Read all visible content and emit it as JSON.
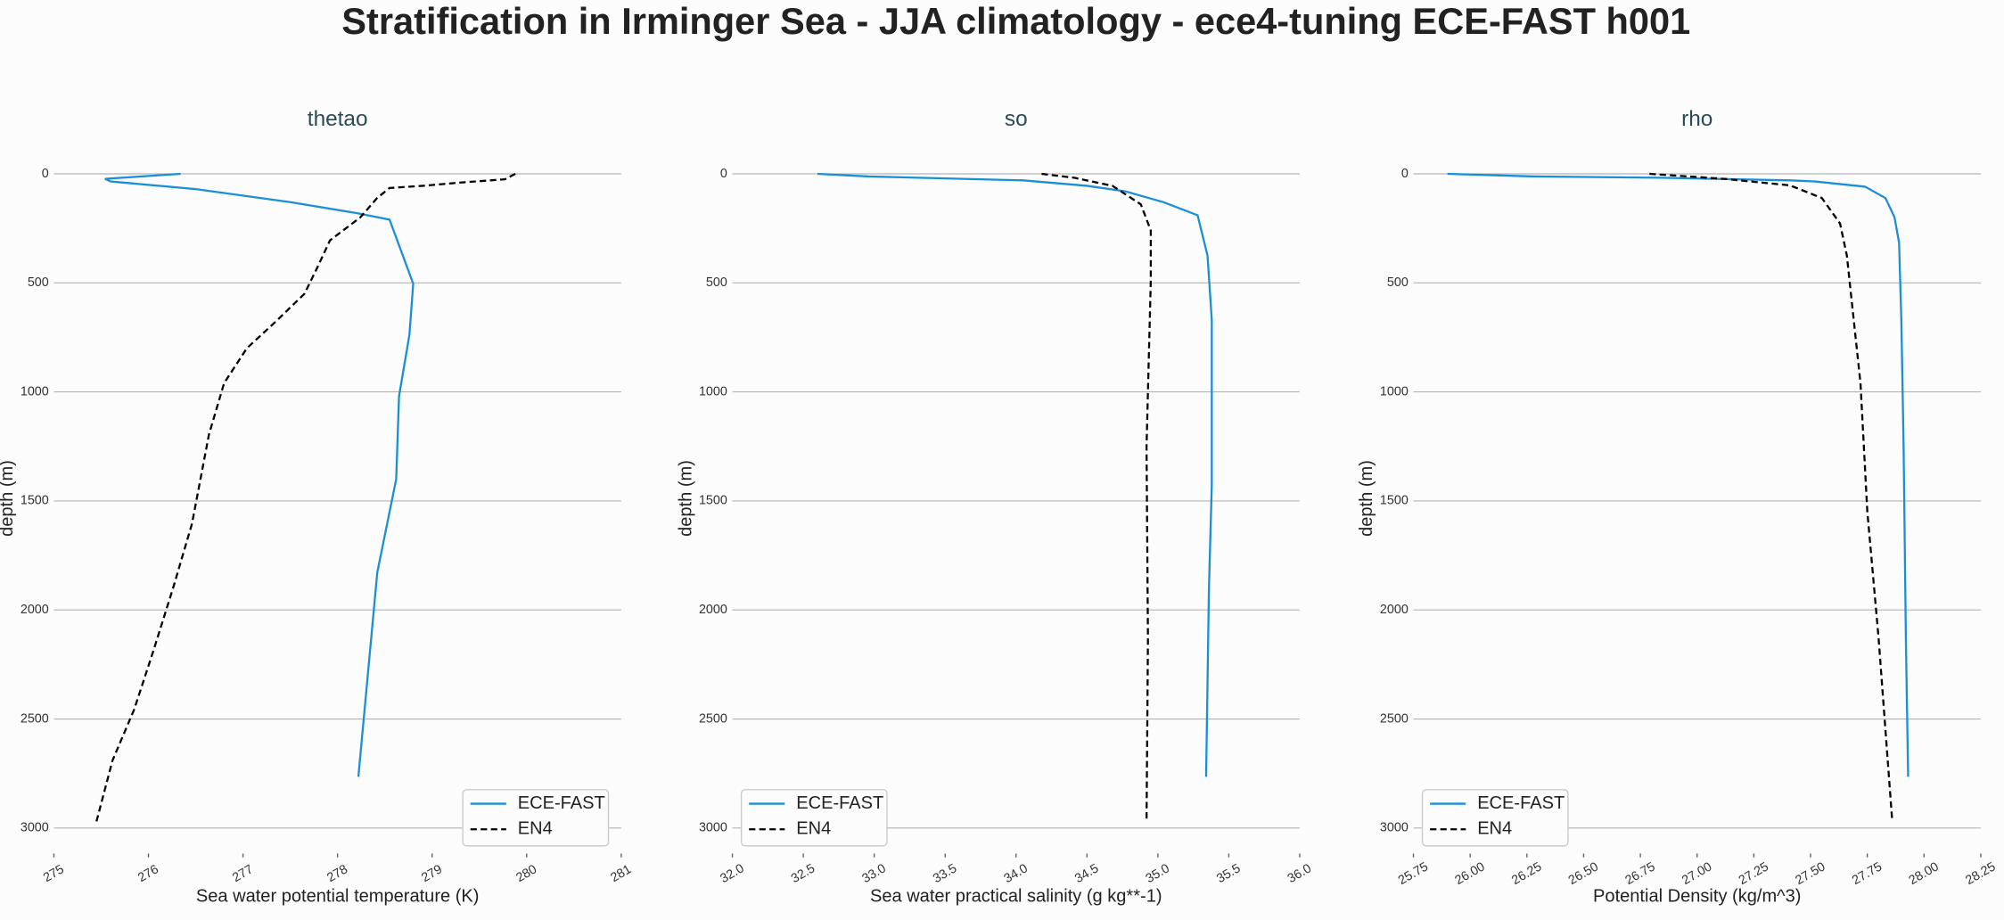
{
  "title": "Stratification in Irminger Sea - JJA climatology - ece4-tuning ECE-FAST h001",
  "chart_data": [
    {
      "type": "line",
      "title": "thetao",
      "xlabel": "Sea water potential temperature (K)",
      "ylabel": "depth (m)",
      "xlim": [
        275,
        281
      ],
      "xticks": [
        275,
        276,
        277,
        278,
        279,
        280,
        281
      ],
      "ylim": [
        -94,
        3117
      ],
      "invert_y": true,
      "yticks": [
        0,
        500,
        1000,
        1500,
        2000,
        2500,
        3000
      ],
      "grid": "y",
      "legend": "lower right",
      "series": [
        {
          "name": "ECE-FAST",
          "color": "#1a8fd6",
          "dash": "solid",
          "x": [
            276.34,
            275.54,
            275.6,
            276.5,
            277.5,
            278.2,
            278.55,
            278.8,
            278.76,
            278.65,
            278.62,
            278.42,
            278.22
          ],
          "y": [
            0,
            23,
            35,
            70,
            130,
            180,
            210,
            504,
            738,
            1020,
            1400,
            1828,
            2765
          ]
        },
        {
          "name": "EN4",
          "color": "#000000",
          "dash": "dashed",
          "x": [
            279.88,
            279.77,
            279.3,
            278.9,
            278.55,
            278.42,
            278.24,
            277.92,
            277.78,
            277.65,
            277.34,
            277.04,
            276.8,
            276.64,
            276.46,
            276.26,
            276.05,
            275.85,
            275.62,
            275.45
          ],
          "y": [
            0,
            25,
            40,
            55,
            65,
            110,
            200,
            305,
            435,
            550,
            680,
            800,
            960,
            1195,
            1605,
            1900,
            2190,
            2455,
            2690,
            2970
          ]
        }
      ]
    },
    {
      "type": "line",
      "title": "so",
      "xlabel": "Sea water practical salinity (g kg**-1)",
      "ylabel": "depth (m)",
      "xlim": [
        32,
        36
      ],
      "xticks": [
        {
          "value": 32,
          "label": "32.0"
        },
        32.5,
        {
          "value": 33,
          "label": "33.0"
        },
        33.5,
        {
          "value": 34,
          "label": "34.0"
        },
        34.5,
        {
          "value": 35,
          "label": "35.0"
        },
        35.5,
        {
          "value": 36,
          "label": "36.0"
        }
      ],
      "ylim": [
        -94,
        3117
      ],
      "invert_y": true,
      "yticks": [
        0,
        500,
        1000,
        1500,
        2000,
        2500,
        3000
      ],
      "grid": "y",
      "legend": "lower left",
      "series": [
        {
          "name": "ECE-FAST",
          "color": "#1a8fd6",
          "dash": "solid",
          "x": [
            32.6,
            32.96,
            34.05,
            34.5,
            34.77,
            35.04,
            35.28,
            35.35,
            35.38,
            35.38,
            35.36,
            35.34
          ],
          "y": [
            0,
            12,
            30,
            55,
            80,
            130,
            190,
            375,
            670,
            1430,
            1900,
            2765
          ]
        },
        {
          "name": "EN4",
          "color": "#000000",
          "dash": "dashed",
          "x": [
            34.18,
            34.41,
            34.68,
            34.88,
            34.95,
            34.95,
            34.92,
            34.93,
            34.92
          ],
          "y": [
            0,
            18,
            55,
            140,
            260,
            490,
            1250,
            2130,
            2970
          ]
        }
      ]
    },
    {
      "type": "line",
      "title": "rho",
      "xlabel": "Potential Density (kg/m^3)",
      "ylabel": "depth (m)",
      "xlim": [
        25.75,
        28.25
      ],
      "xticks": [
        25.75,
        {
          "value": 26,
          "label": "26.00"
        },
        26.25,
        {
          "value": 26.5,
          "label": "26.50"
        },
        26.75,
        {
          "value": 27,
          "label": "27.00"
        },
        27.25,
        {
          "value": 27.5,
          "label": "27.50"
        },
        27.75,
        {
          "value": 28,
          "label": "28.00"
        },
        28.25
      ],
      "ylim": [
        -94,
        3117
      ],
      "invert_y": true,
      "yticks": [
        0,
        500,
        1000,
        1500,
        2000,
        2500,
        3000
      ],
      "grid": "y",
      "legend": "lower left",
      "series": [
        {
          "name": "ECE-FAST",
          "color": "#1a8fd6",
          "dash": "solid",
          "x": [
            25.9,
            26.28,
            26.84,
            27.41,
            27.52,
            27.74,
            27.83,
            27.87,
            27.89,
            27.9,
            27.91,
            27.92,
            27.93
          ],
          "y": [
            0,
            12,
            18,
            30,
            35,
            59,
            111,
            199,
            316,
            667,
            1253,
            2132,
            2765
          ]
        },
        {
          "name": "EN4",
          "color": "#000000",
          "dash": "dashed",
          "x": [
            26.79,
            27.12,
            27.41,
            27.55,
            27.63,
            27.66,
            27.69,
            27.72,
            27.75,
            27.8,
            27.86
          ],
          "y": [
            0,
            23,
            53,
            111,
            228,
            375,
            668,
            960,
            1547,
            2132,
            2970
          ]
        }
      ]
    }
  ]
}
